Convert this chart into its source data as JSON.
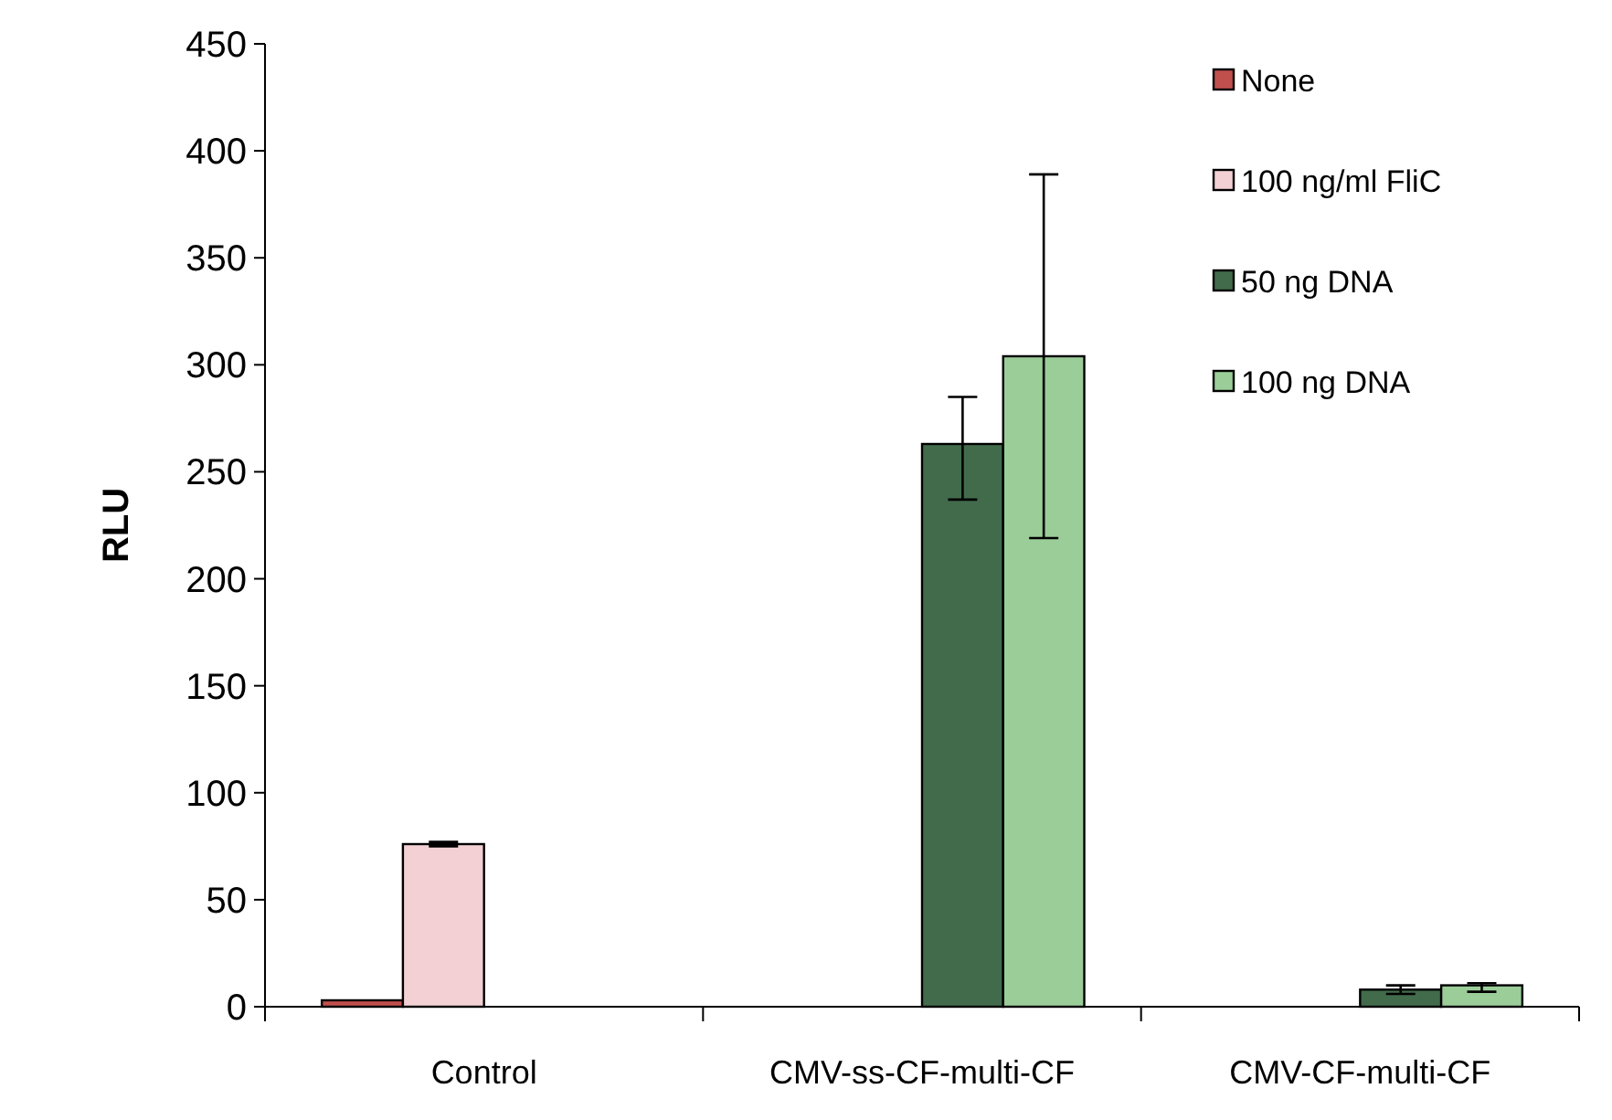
{
  "chart_data": {
    "type": "bar",
    "ylabel": "RLU",
    "categories": [
      "Control",
      "CMV-ss-CF-multi-CF",
      "CMV-CF-multi-CF"
    ],
    "series": [
      {
        "name": "None",
        "color": "#c0504d",
        "values": [
          3,
          null,
          null
        ]
      },
      {
        "name": "100 ng/ml FliC",
        "color": "#f2d0d4",
        "values": [
          76,
          null,
          null
        ],
        "errors": [
          [
            75,
            77
          ],
          null,
          null
        ]
      },
      {
        "name": "50 ng DNA",
        "color": "#426b4b",
        "values": [
          null,
          263,
          8
        ],
        "errors": [
          null,
          [
            237,
            285
          ],
          [
            6,
            10
          ]
        ]
      },
      {
        "name": "100 ng DNA",
        "color": "#9bcd98",
        "values": [
          null,
          304,
          10
        ],
        "errors": [
          null,
          [
            219,
            389
          ],
          [
            7,
            11
          ]
        ]
      }
    ],
    "ylim": [
      0,
      450
    ],
    "yticks": [
      0,
      50,
      100,
      150,
      200,
      250,
      300,
      350,
      400,
      450
    ],
    "grid": false,
    "legend": "top right"
  }
}
